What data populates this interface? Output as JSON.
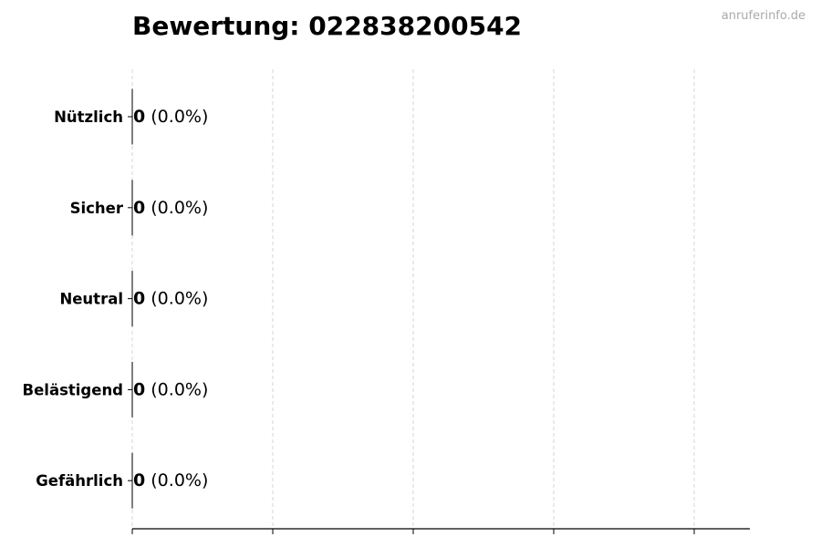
{
  "chart_data": {
    "type": "bar",
    "orientation": "horizontal",
    "title": "Bewertung: 022838200542",
    "categories": [
      "Nützlich",
      "Sicher",
      "Neutral",
      "Belästigend",
      "Gefährlich"
    ],
    "values": [
      0,
      0,
      0,
      0,
      0
    ],
    "data_labels": [
      {
        "count": "0",
        "percent": "(0.0%)"
      },
      {
        "count": "0",
        "percent": "(0.0%)"
      },
      {
        "count": "0",
        "percent": "(0.0%)"
      },
      {
        "count": "0",
        "percent": "(0.0%)"
      },
      {
        "count": "0",
        "percent": "(0.0%)"
      }
    ],
    "xlabel": "",
    "ylabel": "",
    "grid": "vertical dashed",
    "colors": {
      "bar_edge": "#000000",
      "grid": "#cccccc",
      "watermark": "#aaaaaa"
    }
  },
  "watermark": "anruferinfo.de"
}
